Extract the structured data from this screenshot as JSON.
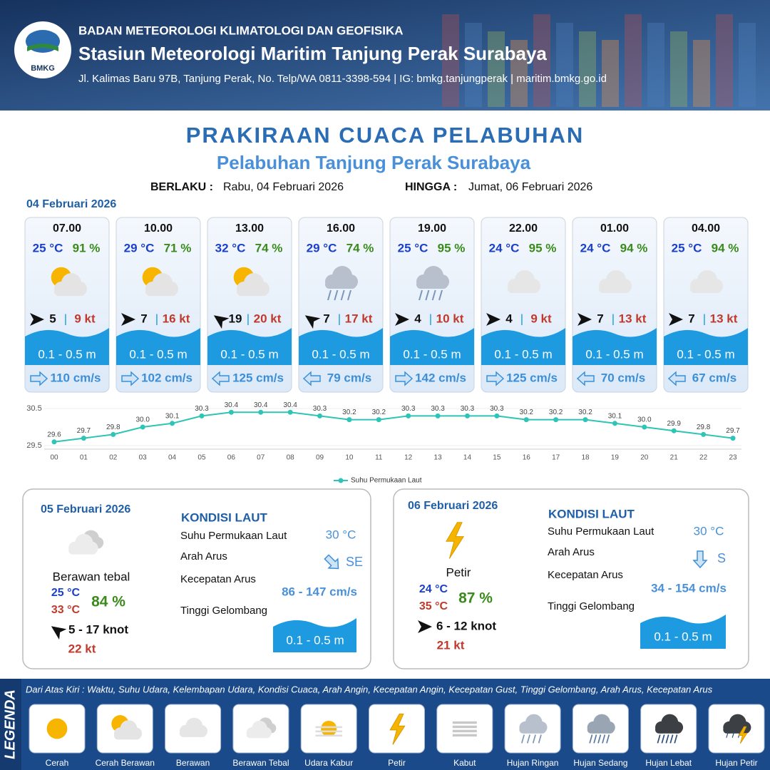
{
  "header": {
    "logo_text": "BMKG",
    "agency": "BADAN METEOROLOGI KLIMATOLOGI DAN GEOFISIKA",
    "station": "Stasiun Meteorologi Maritim Tanjung Perak Surabaya",
    "address": "Jl. Kalimas Baru 97B, Tanjung Perak, No. Telp/WA 0811-3398-594 | IG: bmkg.tanjungperak | maritim.bmkg.go.id"
  },
  "title": "PRAKIRAAN CUACA PELABUHAN",
  "subtitle": "Pelabuhan Tanjung Perak Surabaya",
  "validity": {
    "from_label": "BERLAKU :",
    "from": "Rabu, 04 Februari 2026",
    "to_label": "HINGGA :",
    "to": "Jumat, 06 Februari 2026"
  },
  "today": {
    "date": "04 Februari 2026",
    "forecasts": [
      {
        "time": "07.00",
        "temperature": "25 °C",
        "humidity": "91 %",
        "wind": "5",
        "separator": "|",
        "gust": "9 kt",
        "wave": "0.1 - 0.5 m",
        "current": "110 cm/s"
      },
      {
        "time": "10.00",
        "temperature": "29 °C",
        "humidity": "71 %",
        "wind": "7",
        "separator": "|",
        "gust": "16 kt",
        "wave": "0.1 - 0.5 m",
        "current": "102 cm/s"
      },
      {
        "time": "13.00",
        "temperature": "32 °C",
        "humidity": "74 %",
        "wind": "19",
        "separator": "|",
        "gust": "20 kt",
        "wave": "0.1 - 0.5 m",
        "current": "125 cm/s"
      },
      {
        "time": "16.00",
        "temperature": "29 °C",
        "humidity": "74 %",
        "wind": "7",
        "separator": "|",
        "gust": "17 kt",
        "wave": "0.1 - 0.5 m",
        "current": "79 cm/s"
      },
      {
        "time": "19.00",
        "temperature": "25 °C",
        "humidity": "95 %",
        "wind": "4",
        "separator": "|",
        "gust": "10 kt",
        "wave": "0.1 - 0.5 m",
        "current": "142 cm/s"
      },
      {
        "time": "22.00",
        "temperature": "24 °C",
        "humidity": "95 %",
        "wind": "4",
        "separator": "|",
        "gust": "9 kt",
        "wave": "0.1 - 0.5 m",
        "current": "125 cm/s"
      },
      {
        "time": "01.00",
        "temperature": "24 °C",
        "humidity": "94 %",
        "wind": "7",
        "separator": "|",
        "gust": "13 kt",
        "wave": "0.1 - 0.5 m",
        "current": "70 cm/s"
      },
      {
        "time": "04.00",
        "temperature": "25 °C",
        "humidity": "94 %",
        "wind": "7",
        "separator": "|",
        "gust": "13 kt",
        "wave": "0.1 - 0.5 m",
        "current": "67 cm/s"
      }
    ]
  },
  "chart_data": {
    "type": "line",
    "categories": [
      "00",
      "01",
      "02",
      "03",
      "04",
      "05",
      "06",
      "07",
      "08",
      "09",
      "10",
      "11",
      "12",
      "13",
      "14",
      "15",
      "16",
      "17",
      "18",
      "19",
      "20",
      "21",
      "22",
      "23"
    ],
    "series": [
      {
        "name": "Suhu Permukaan Laut",
        "color": "#2ec4b6",
        "values": [
          29.6,
          29.7,
          29.8,
          30.0,
          30.1,
          30.3,
          30.4,
          30.4,
          30.4,
          30.3,
          30.2,
          30.2,
          30.3,
          30.3,
          30.3,
          30.3,
          30.2,
          30.2,
          30.2,
          30.1,
          30.0,
          29.9,
          29.8,
          29.7
        ],
        "value_labels": [
          "29.6",
          "29.7",
          "29.8",
          "30.0",
          "30.1",
          "30.3",
          "30.4",
          "30.4",
          "30.4",
          "30.3",
          "30.2",
          "30.2",
          "30.3",
          "30.3",
          "30.3",
          "30.3",
          "30.2",
          "30.2",
          "30.2",
          "30.1",
          "30.0",
          "29.9",
          "29.8",
          "29.7"
        ]
      }
    ],
    "ylim": [
      29.5,
      30.5
    ],
    "yticks": [
      29.5,
      30.5
    ],
    "grid": true,
    "legend": "bottom"
  },
  "days": [
    {
      "date": "05 Februari 2026",
      "condition": "Berawan tebal",
      "temp_min": "25 °C",
      "temp_max": "33 °C",
      "humidity": "84 %",
      "wind": "5  - 17 knot",
      "gust": "22 kt",
      "sea": {
        "title": "KONDISI LAUT",
        "labels": [
          "Suhu Permukaan Laut",
          "Arah Arus",
          "Kecepatan Arus",
          "Tinggi Gelombang"
        ],
        "temperature": "30 °C",
        "current_direction": "SE",
        "current_speed": "86  - 147 cm/s",
        "wave": "0.1 - 0.5 m"
      }
    },
    {
      "date": "06 Februari 2026",
      "condition": "Petir",
      "temp_min": "24 °C",
      "temp_max": "35 °C",
      "humidity": "87 %",
      "wind": "6  - 12 knot",
      "gust": "21 kt",
      "sea": {
        "title": "KONDISI LAUT",
        "labels": [
          "Suhu Permukaan Laut",
          "Arah Arus",
          "Kecepatan Arus",
          "Tinggi Gelombang"
        ],
        "temperature": "30 °C",
        "current_direction": "S",
        "current_speed": "34 - 154 cm/s",
        "wave": "0.1 - 0.5 m"
      }
    }
  ],
  "legend": {
    "title": "LEGENDA",
    "description": "Dari Atas Kiri : Waktu, Suhu Udara, Kelembapan Udara, Kondisi Cuaca, Arah Angin, Kecepatan Angin, Kecepatan Gust, Tinggi Gelombang, Arah Arus, Kecepatan Arus",
    "items": [
      "Cerah",
      "Cerah Berawan",
      "Berawan",
      "Berawan Tebal",
      "Udara Kabur",
      "Petir",
      "Kabut",
      "Hujan Ringan",
      "Hujan Sedang",
      "Hujan Lebat",
      "Hujan Petir"
    ]
  }
}
